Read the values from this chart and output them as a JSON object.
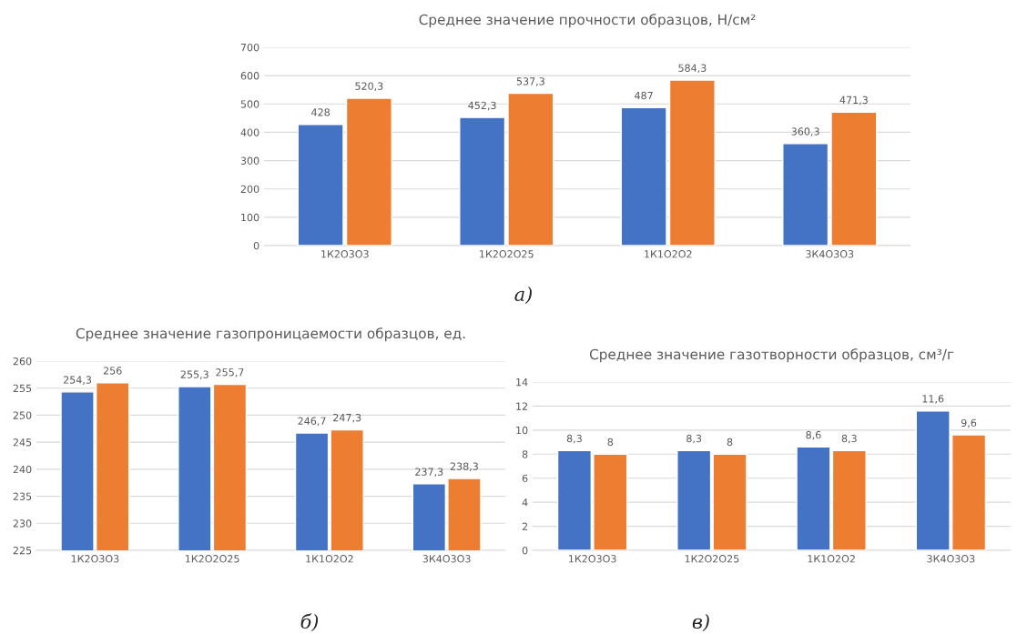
{
  "chart_data": [
    {
      "type": "bar",
      "title": "Среднее значение прочности образцов, Н/см²",
      "categories": [
        "1К2О3О3",
        "1К2О2О25",
        "1К1О2О2",
        "3К4О3О3"
      ],
      "series": [
        {
          "color": "#4472c4",
          "values": [
            428,
            452.3,
            487,
            360.3
          ],
          "value_labels": [
            "428",
            "452,3",
            "487",
            "360,3"
          ]
        },
        {
          "color": "#ed7d31",
          "values": [
            520.3,
            537.3,
            584.3,
            471.3
          ],
          "value_labels": [
            "520,3",
            "537,3",
            "584,3",
            "471,3"
          ]
        }
      ],
      "ylim": [
        0,
        700
      ],
      "yticks": [
        0,
        100,
        200,
        300,
        400,
        500,
        600,
        700
      ],
      "grid": "y",
      "legend": false,
      "annotations": [
        "а)"
      ]
    },
    {
      "type": "bar",
      "title": "Среднее значение газопроницаемости образцов, ед.",
      "categories": [
        "1К2О3О3",
        "1К2О2О25",
        "1К1О2О2",
        "3К4О3О3"
      ],
      "series": [
        {
          "color": "#4472c4",
          "values": [
            254.3,
            255.3,
            246.7,
            237.3
          ],
          "value_labels": [
            "254,3",
            "255,3",
            "246,7",
            "237,3"
          ]
        },
        {
          "color": "#ed7d31",
          "values": [
            256,
            255.7,
            247.3,
            238.3
          ],
          "value_labels": [
            "256",
            "255,7",
            "247,3",
            "238,3"
          ]
        }
      ],
      "ylim": [
        225,
        260
      ],
      "yticks": [
        225,
        230,
        235,
        240,
        245,
        250,
        255,
        260
      ],
      "grid": "y",
      "legend": false,
      "annotations": [
        "б)"
      ]
    },
    {
      "type": "bar",
      "title": "Среднее значение газотворности образцов, см³/г",
      "categories": [
        "1К2О3О3",
        "1К2О2О25",
        "1К1О2О2",
        "3К4О3О3"
      ],
      "series": [
        {
          "color": "#4472c4",
          "values": [
            8.3,
            8.3,
            8.6,
            11.6
          ],
          "value_labels": [
            "8,3",
            "8,3",
            "8,6",
            "11,6"
          ]
        },
        {
          "color": "#ed7d31",
          "values": [
            8,
            8,
            8.3,
            9.6
          ],
          "value_labels": [
            "8",
            "8",
            "8,3",
            "9,6"
          ]
        }
      ],
      "ylim": [
        0,
        14
      ],
      "yticks": [
        0,
        2,
        4,
        6,
        8,
        10,
        12,
        14
      ],
      "grid": "y",
      "legend": false,
      "annotations": [
        "в)"
      ]
    }
  ]
}
